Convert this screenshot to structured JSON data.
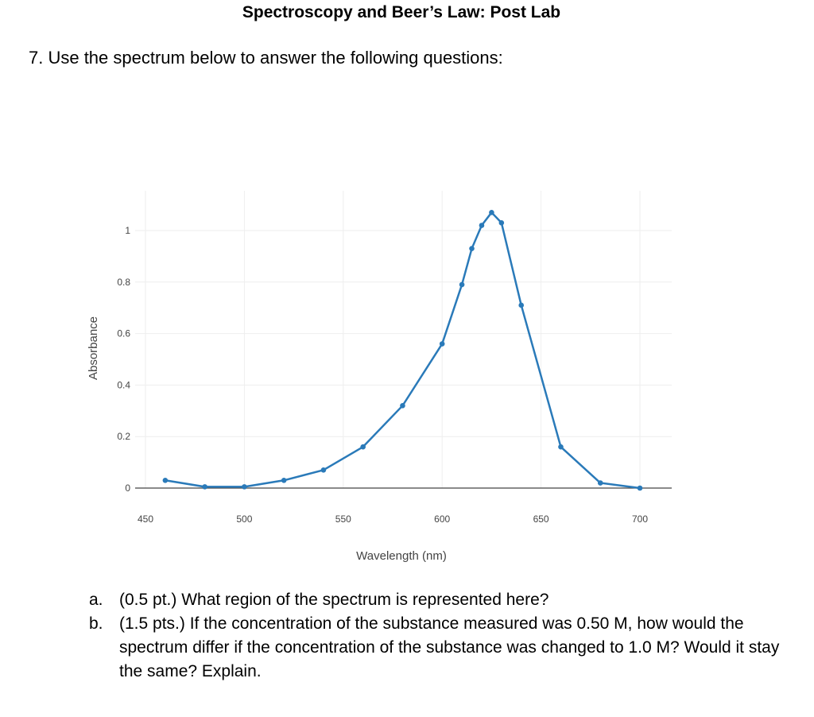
{
  "header": {
    "title": "Spectroscopy and Beer’s Law: Post Lab"
  },
  "question": {
    "text": "7. Use the spectrum below to answer the following questions:"
  },
  "chart_data": {
    "type": "line",
    "xlabel": "Wavelength (nm)",
    "ylabel": "Absorbance",
    "xlim": [
      450,
      700
    ],
    "ylim": [
      0,
      1
    ],
    "x_ticks": [
      "450",
      "500",
      "550",
      "600",
      "650",
      "700"
    ],
    "y_ticks": [
      "0",
      "0.2",
      "0.4",
      "0.6",
      "0.8",
      "1"
    ],
    "grid": true,
    "markers": true,
    "color": "#2a7ab9",
    "series": [
      {
        "x": [
          460,
          480,
          500,
          520,
          540,
          560,
          580,
          600,
          610,
          615,
          620,
          625,
          630,
          640,
          660,
          680,
          700
        ],
        "y": [
          0.03,
          0.005,
          0.005,
          0.03,
          0.07,
          0.16,
          0.32,
          0.56,
          0.79,
          0.93,
          1.02,
          1.07,
          1.03,
          0.71,
          0.16,
          0.02,
          0.0
        ]
      }
    ]
  },
  "subquestions": [
    {
      "letter": "a.",
      "text": "(0.5 pt.) What region of the spectrum is represented here?"
    },
    {
      "letter": "b.",
      "text": "(1.5 pts.) If the concentration of the substance measured was 0.50 M, how would the spectrum differ if the concentration of the substance was changed to 1.0 M? Would it stay the same? Explain."
    }
  ]
}
